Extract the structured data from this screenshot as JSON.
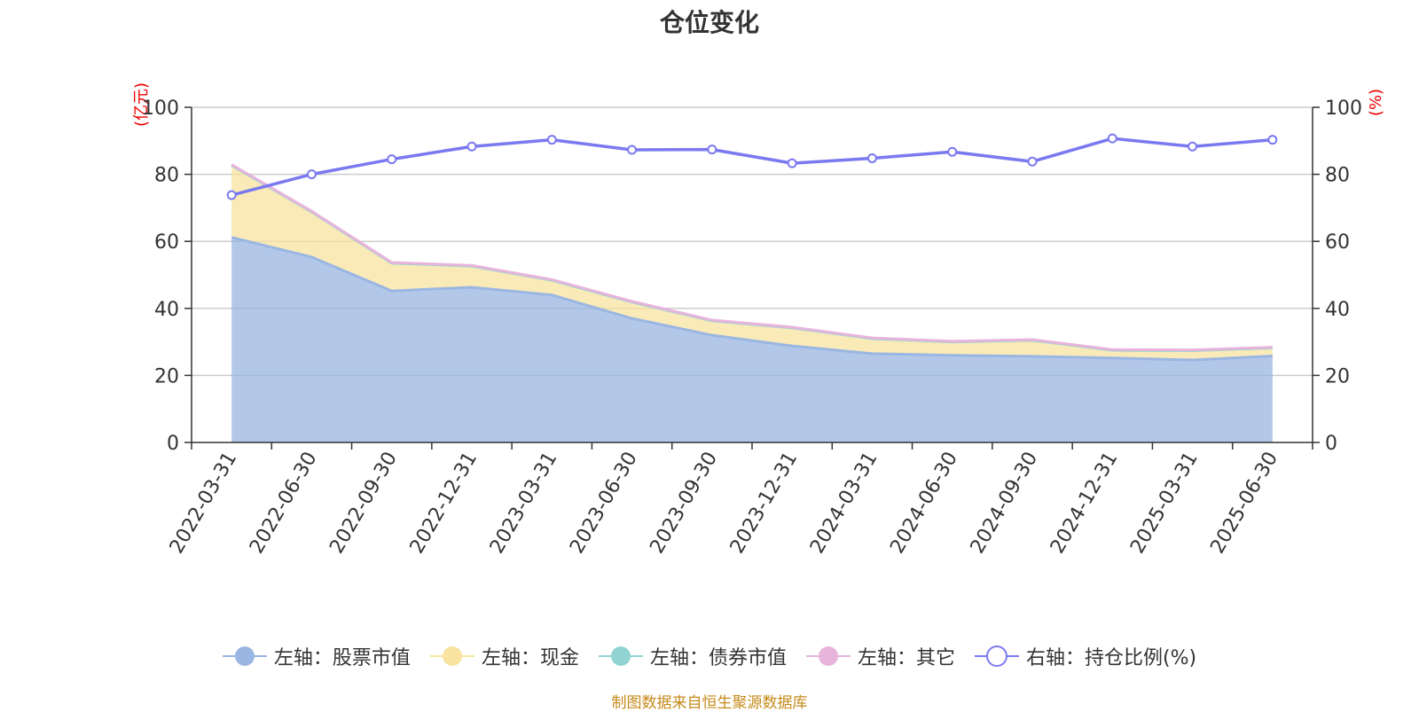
{
  "title": "仓位变化",
  "left_unit": "(亿元)",
  "right_unit": "(%)",
  "source": "制图数据来自恒生聚源数据库",
  "colors": {
    "stock": "#9ab6e2",
    "cash": "#f8e3a0",
    "bond": "#92d4d4",
    "other": "#e8b4dc",
    "ratio": "#7b79f0"
  },
  "legend": [
    {
      "label": "左轴：股票市值",
      "color": "#9ab6e2",
      "marker": "filled-circle"
    },
    {
      "label": "左轴：现金",
      "color": "#f8e3a0",
      "marker": "filled-circle"
    },
    {
      "label": "左轴：债券市值",
      "color": "#92d4d4",
      "marker": "filled-circle"
    },
    {
      "label": "左轴：其它",
      "color": "#e8b4dc",
      "marker": "filled-circle"
    },
    {
      "label": "右轴：持仓比例(%)",
      "color": "#7b79f0",
      "marker": "hollow-circle"
    }
  ],
  "chart_data": {
    "type": "area",
    "title": "仓位变化",
    "categories": [
      "2022-03-31",
      "2022-06-30",
      "2022-09-30",
      "2022-12-31",
      "2023-03-31",
      "2023-06-30",
      "2023-09-30",
      "2023-12-31",
      "2024-03-31",
      "2024-06-30",
      "2024-09-30",
      "2024-12-31",
      "2025-03-31",
      "2025-06-30"
    ],
    "left_axis": {
      "unit": "(亿元)",
      "ylim": [
        0,
        100
      ],
      "ticks": [
        0,
        20,
        40,
        60,
        80,
        100
      ]
    },
    "right_axis": {
      "unit": "(%)",
      "ylim": [
        0,
        100
      ],
      "ticks": [
        0,
        20,
        40,
        60,
        80,
        100
      ]
    },
    "grid": true,
    "legend_position": "bottom",
    "stacked": true,
    "series": [
      {
        "name": "左轴：股票市值",
        "axis": "left",
        "type": "area",
        "values": [
          61.2,
          55.3,
          45.2,
          46.3,
          44.0,
          37.0,
          32.0,
          28.8,
          26.5,
          26.0,
          25.7,
          25.2,
          24.6,
          25.8
        ]
      },
      {
        "name": "左轴：现金",
        "axis": "left",
        "type": "area",
        "values": [
          21.5,
          13.5,
          8.3,
          6.3,
          4.4,
          4.9,
          4.3,
          5.4,
          4.5,
          4.0,
          4.8,
          2.3,
          2.8,
          2.4
        ]
      },
      {
        "name": "左轴：债券市值",
        "axis": "left",
        "type": "area",
        "values": [
          0,
          0,
          0,
          0,
          0,
          0,
          0,
          0,
          0,
          0,
          0,
          0,
          0,
          0
        ]
      },
      {
        "name": "左轴：其它",
        "axis": "left",
        "type": "area",
        "values": [
          0.2,
          0.2,
          0.2,
          0.2,
          0.2,
          0.2,
          0.2,
          0.2,
          0.2,
          0.2,
          0.2,
          0.2,
          0.2,
          0.2
        ]
      },
      {
        "name": "右轴：持仓比例(%)",
        "axis": "right",
        "type": "line",
        "values": [
          73.8,
          80.0,
          84.5,
          88.3,
          90.3,
          87.3,
          87.4,
          83.3,
          84.8,
          86.7,
          83.8,
          90.7,
          88.3,
          90.3
        ]
      }
    ]
  }
}
